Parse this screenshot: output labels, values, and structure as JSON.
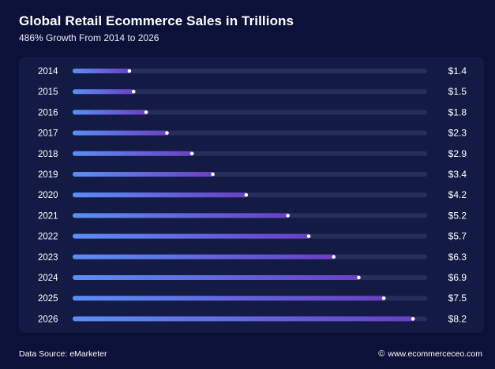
{
  "title": "Global Retail Ecommerce Sales in Trillions",
  "subtitle": "486% Growth From 2014 to 2026",
  "footer": {
    "source": "Data Source: eMarketer",
    "copyright_icon": "copyright-icon",
    "site": "www.ecommerceceo.com"
  },
  "colors": {
    "background": "#0b1138",
    "panel": "#131b45",
    "track": "#262e5a",
    "bar_start": "#5b8ff5",
    "bar_end": "#6a3fc4"
  },
  "chart_data": {
    "type": "bar",
    "orientation": "horizontal",
    "categories": [
      "2014",
      "2015",
      "2016",
      "2017",
      "2018",
      "2019",
      "2020",
      "2021",
      "2022",
      "2023",
      "2024",
      "2025",
      "2026"
    ],
    "values": [
      1.4,
      1.5,
      1.8,
      2.3,
      2.9,
      3.4,
      4.2,
      5.2,
      5.7,
      6.3,
      6.9,
      7.5,
      8.2
    ],
    "value_labels": [
      "$1.4",
      "$1.5",
      "$1.8",
      "$2.3",
      "$2.9",
      "$3.4",
      "$4.2",
      "$5.2",
      "$5.7",
      "$6.3",
      "$6.9",
      "$7.5",
      "$8.2"
    ],
    "title": "Global Retail Ecommerce Sales in Trillions",
    "subtitle": "486% Growth From 2014 to 2026",
    "xlim": [
      0,
      8.5
    ],
    "grid": false,
    "legend": "none"
  }
}
